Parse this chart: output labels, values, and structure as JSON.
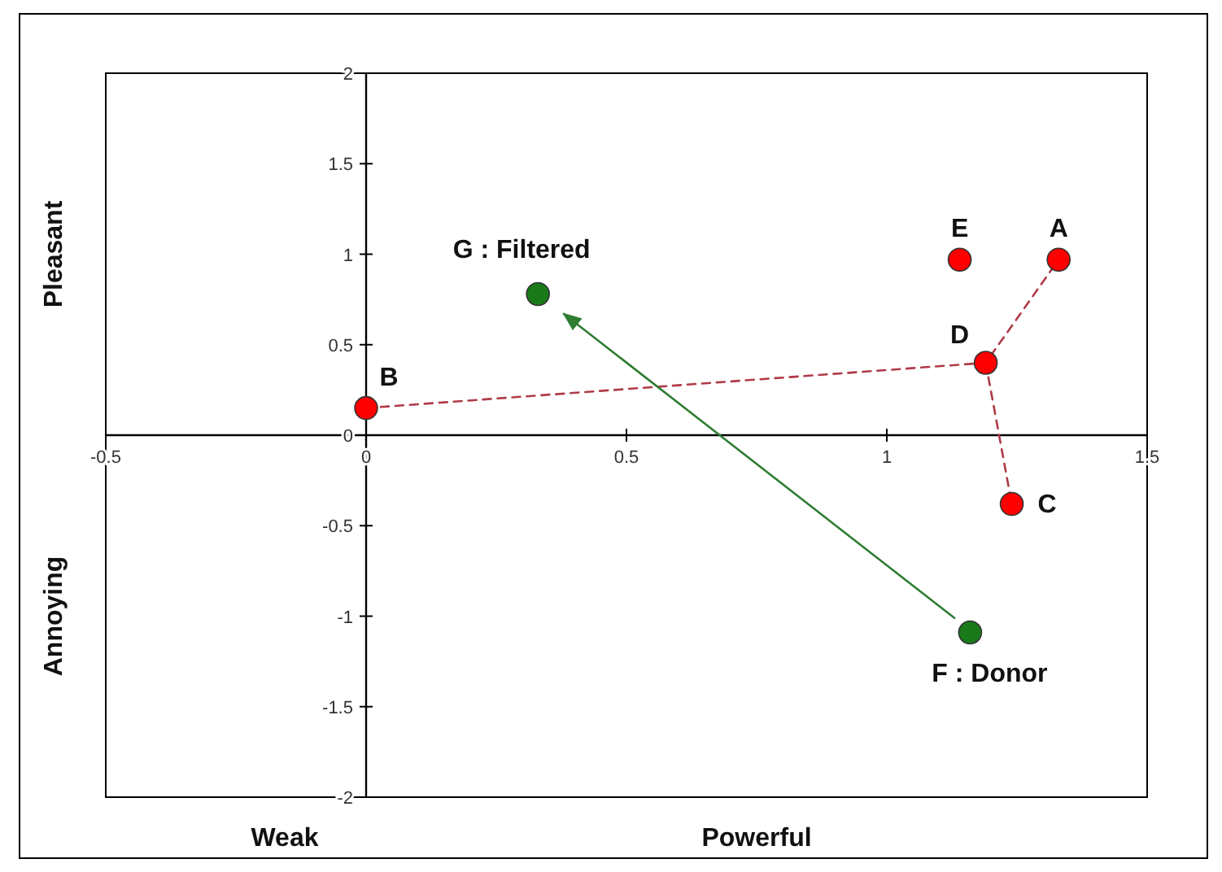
{
  "chart_data": {
    "type": "scatter",
    "xlim": [
      -0.5,
      1.5
    ],
    "ylim": [
      -2,
      2
    ],
    "xticks": [
      -0.5,
      0,
      0.5,
      1,
      1.5
    ],
    "yticks": [
      -2,
      -1.5,
      -1,
      -0.5,
      0,
      0.5,
      1,
      1.5,
      2
    ],
    "grid": false,
    "legend": false,
    "annotations": [
      "Pleasant",
      "Annoying",
      "Weak",
      "Powerful"
    ],
    "series": [
      {
        "type": "line",
        "color": "#b03a48",
        "line_style": "dashed",
        "marker": "none",
        "x": [
          0,
          1.19,
          1.33
        ],
        "values": [
          0.15,
          0.4,
          0.97
        ]
      },
      {
        "type": "line",
        "color": "#b03a48",
        "line_style": "dashed",
        "marker": "none",
        "x": [
          1.19,
          1.24
        ],
        "values": [
          0.4,
          -0.38
        ]
      },
      {
        "type": "line",
        "color": "#2e7d32",
        "line_style": "solid",
        "marker": "none",
        "x": [
          1.13,
          0.38
        ],
        "values": [
          -1.01,
          0.67
        ]
      },
      {
        "name": "A",
        "color": "#ff0000",
        "marker": "circle",
        "x": [
          1.33
        ],
        "values": [
          0.97
        ]
      },
      {
        "name": "B",
        "color": "#ff0000",
        "marker": "circle",
        "x": [
          0
        ],
        "values": [
          0.15
        ]
      },
      {
        "name": "C",
        "color": "#ff0000",
        "marker": "circle",
        "x": [
          1.24
        ],
        "values": [
          -0.38
        ]
      },
      {
        "name": "D",
        "color": "#ff0000",
        "marker": "circle",
        "x": [
          1.19
        ],
        "values": [
          0.4
        ]
      },
      {
        "name": "E",
        "color": "#ff0000",
        "marker": "circle",
        "x": [
          1.14
        ],
        "values": [
          0.97
        ]
      },
      {
        "name": "F : Donor",
        "color": "#1a7a1a",
        "marker": "circle",
        "x": [
          1.16
        ],
        "values": [
          -1.09
        ]
      },
      {
        "name": "G : Filtered",
        "color": "#1a7a1a",
        "marker": "circle",
        "x": [
          0.33
        ],
        "values": [
          0.78
        ]
      }
    ]
  }
}
